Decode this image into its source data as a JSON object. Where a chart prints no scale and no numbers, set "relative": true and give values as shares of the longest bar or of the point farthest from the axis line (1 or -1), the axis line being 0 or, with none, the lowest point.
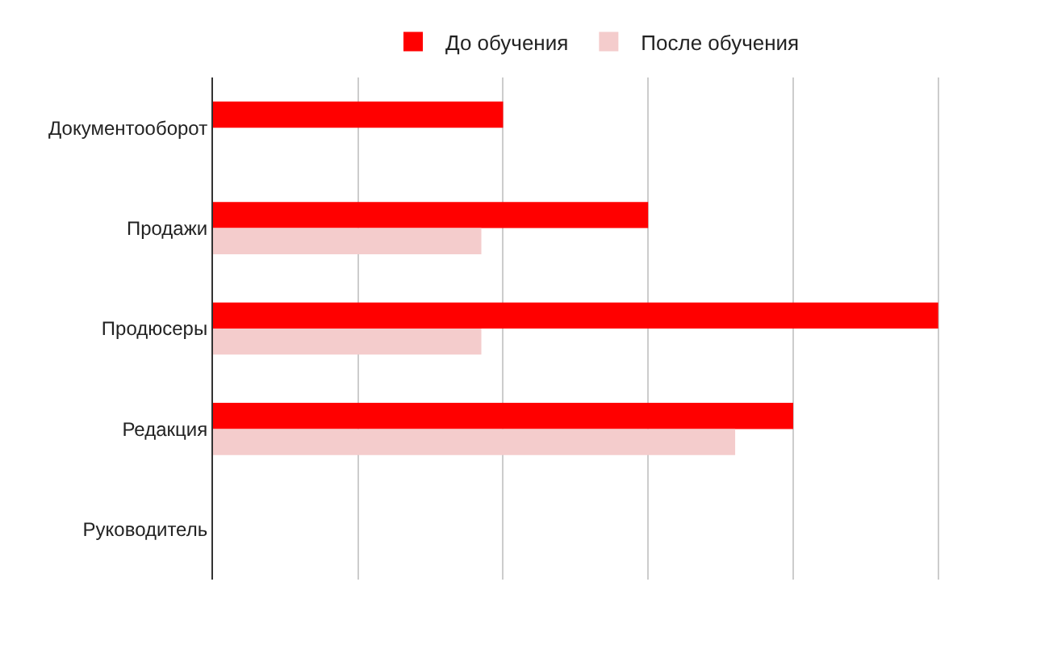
{
  "chart_data": {
    "type": "bar",
    "orientation": "horizontal",
    "relative": true,
    "categories": [
      "Документооборот",
      "Продажи",
      "Продюсеры",
      "Редакция",
      "Руководитель"
    ],
    "series": [
      {
        "name": "До обучения",
        "color": "#ff0000",
        "values": [
          0.4,
          0.6,
          1,
          0.8,
          null
        ]
      },
      {
        "name": "После обучения",
        "color": "#f4cccc",
        "values": [
          null,
          0.37,
          0.37,
          0.72,
          null
        ]
      }
    ],
    "grid": "x",
    "legend": "top"
  }
}
